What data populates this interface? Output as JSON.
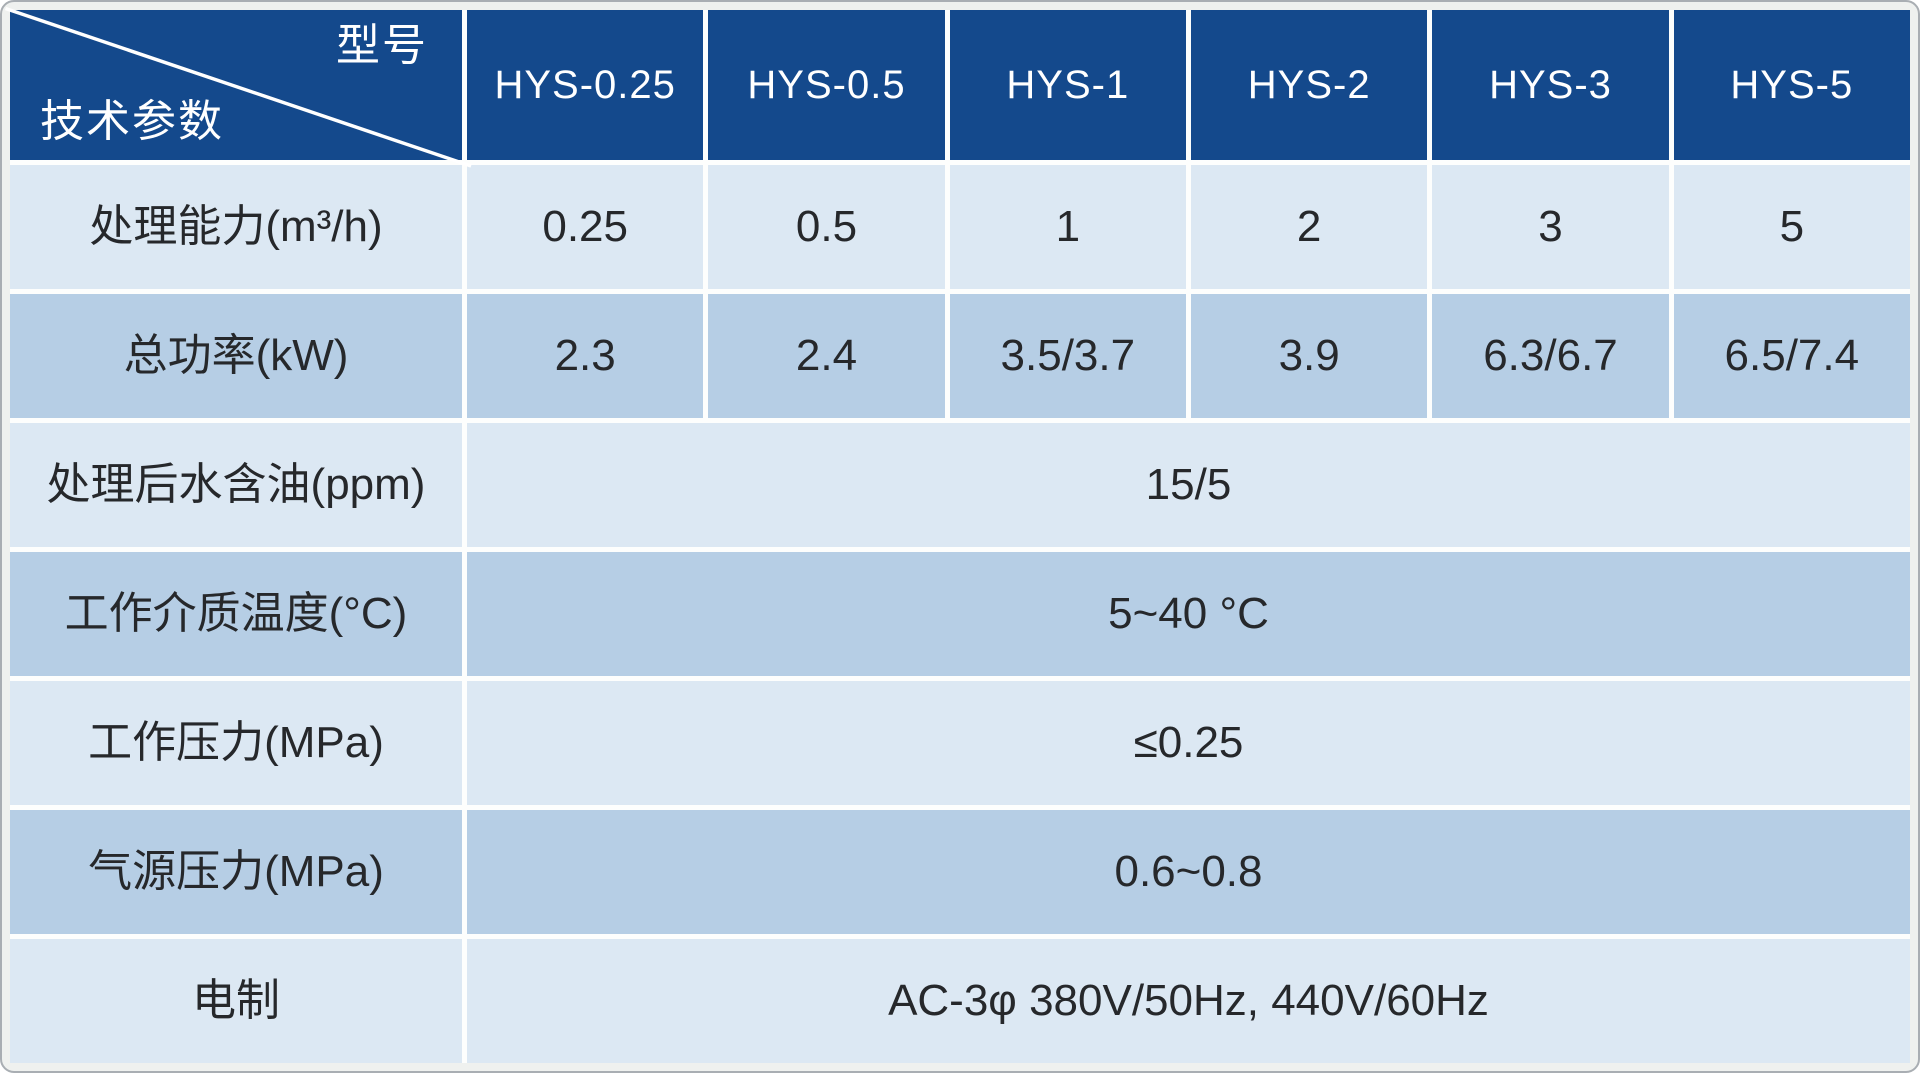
{
  "table": {
    "corner": {
      "top_right": "型号",
      "bottom_left": "技术参数"
    },
    "columns": [
      "HYS-0.25",
      "HYS-0.5",
      "HYS-1",
      "HYS-2",
      "HYS-3",
      "HYS-5"
    ],
    "rows": [
      {
        "label": "处理能力(m³/h)",
        "values": [
          "0.25",
          "0.5",
          "1",
          "2",
          "3",
          "5"
        ]
      },
      {
        "label": "总功率(kW)",
        "values": [
          "2.3",
          "2.4",
          "3.5/3.7",
          "3.9",
          "6.3/6.7",
          "6.5/7.4"
        ]
      },
      {
        "label": "处理后水含油(ppm)",
        "merged": "15/5"
      },
      {
        "label": "工作介质温度(°C)",
        "merged": "5~40 °C"
      },
      {
        "label": "工作压力(MPa)",
        "merged": "≤0.25"
      },
      {
        "label": "气源压力(MPa)",
        "merged": "0.6~0.8"
      },
      {
        "label": "电制",
        "merged": "AC-3φ 380V/50Hz, 440V/60Hz"
      }
    ]
  },
  "colors": {
    "header_bg": "#14498c",
    "row_light": "#dce8f3",
    "row_medium": "#b6cee5",
    "grid": "#fdfefd",
    "text_dark": "#26282b",
    "text_light": "#ffffff",
    "page_bg": "#eff1ef",
    "page_border": "#a9aeb3"
  }
}
